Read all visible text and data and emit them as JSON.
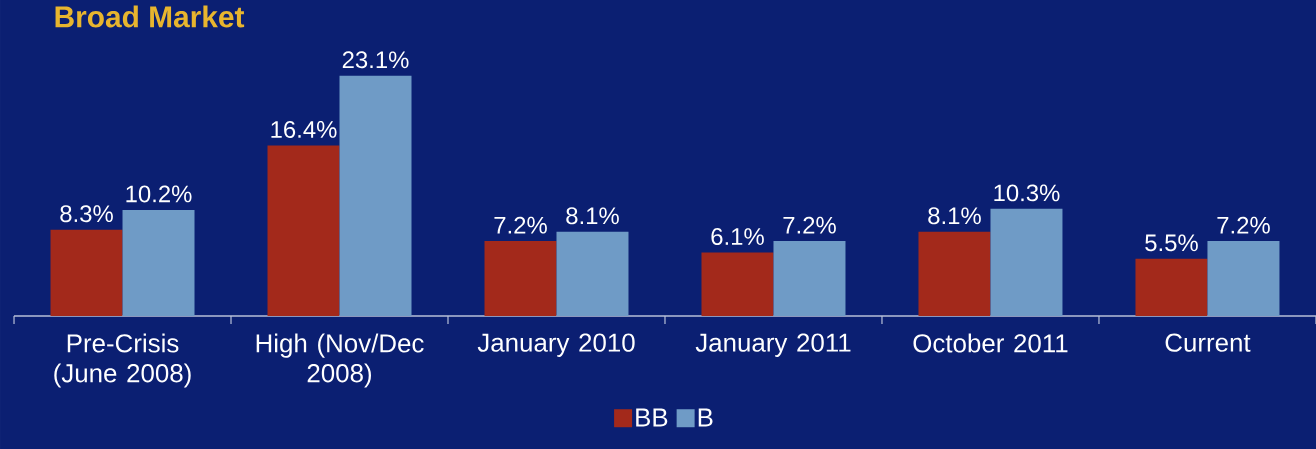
{
  "chart_data": {
    "type": "bar",
    "title": "Broad Market",
    "categories": [
      "Pre-Crisis (June 2008)",
      "High (Nov/Dec 2008)",
      "January 2010",
      "January 2011",
      "October 2011",
      "Current"
    ],
    "series": [
      {
        "name": "BB",
        "color": "#a3291b",
        "values": [
          8.3,
          16.4,
          7.2,
          6.1,
          8.1,
          5.5
        ],
        "value_labels": [
          "8.3%",
          "16.4%",
          "7.2%",
          "6.1%",
          "8.1%",
          "5.5%"
        ]
      },
      {
        "name": "B",
        "color": "#6f9bc6",
        "values": [
          10.2,
          23.1,
          8.1,
          7.2,
          10.3,
          7.2
        ],
        "value_labels": [
          "10.2%",
          "23.1%",
          "8.1%",
          "7.2%",
          "10.3%",
          "7.2%"
        ]
      }
    ],
    "legend": "bottom"
  }
}
